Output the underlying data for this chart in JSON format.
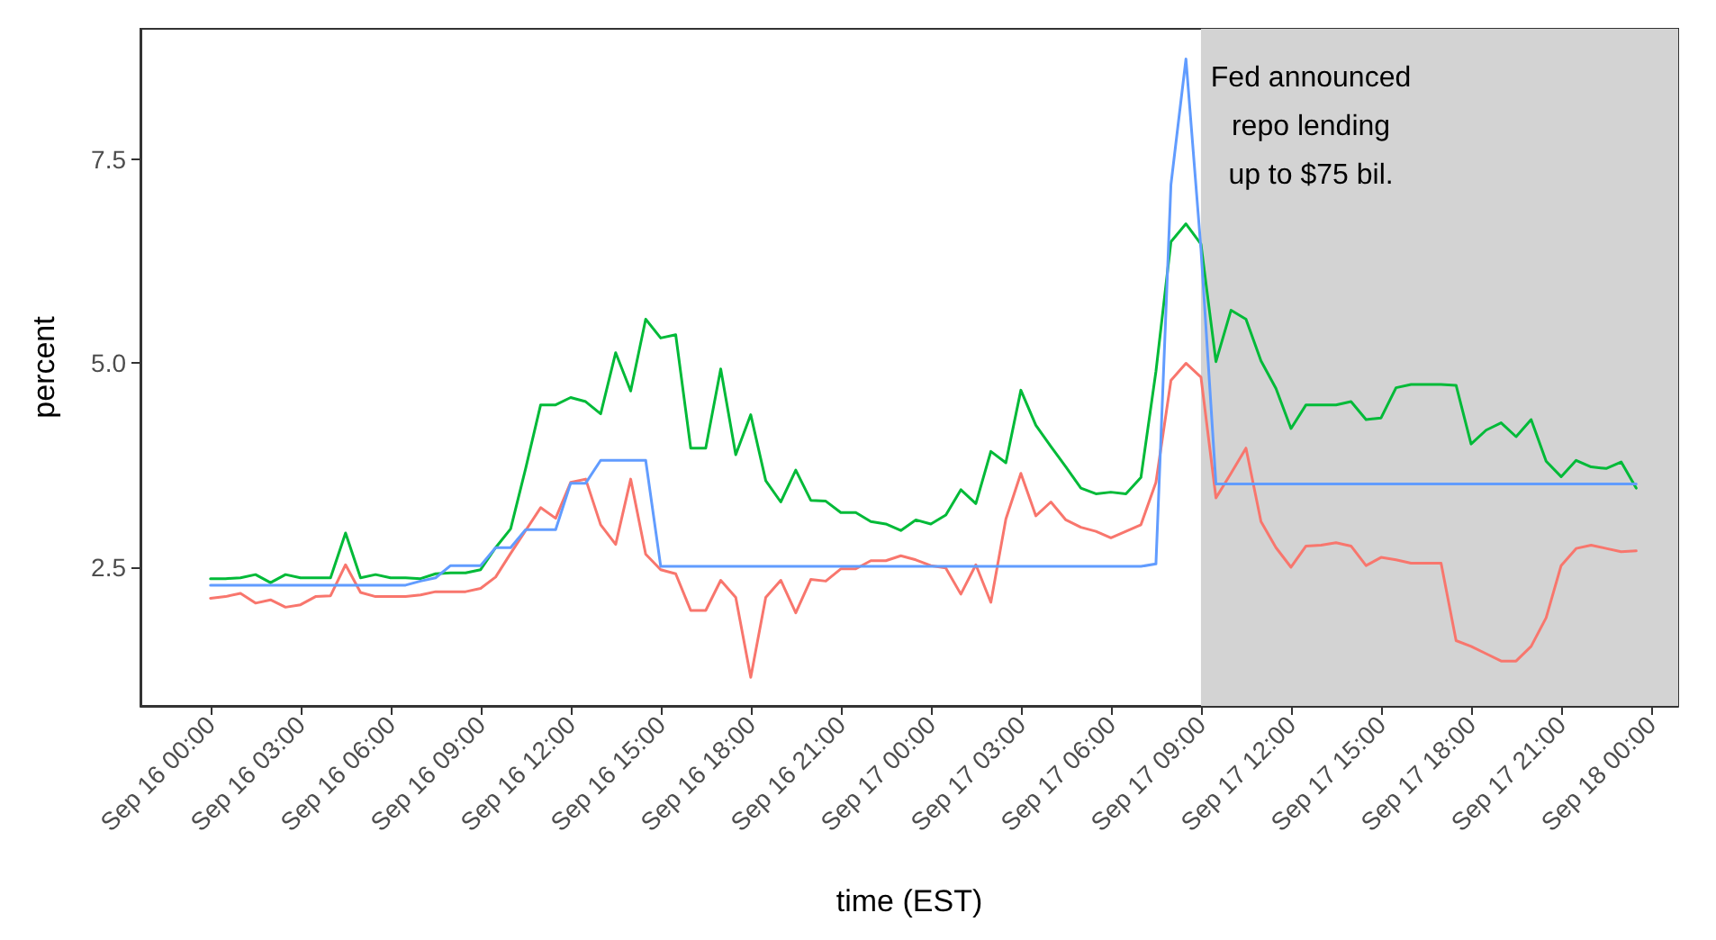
{
  "chart_data": {
    "type": "line",
    "xlabel": "time (EST)",
    "ylabel": "percent",
    "x": [
      "--09-16T00:00",
      "--09-16T00:30",
      "--09-16T01:00",
      "--09-16T01:30",
      "--09-16T02:00",
      "--09-16T02:30",
      "--09-16T03:00",
      "--09-16T03:30",
      "--09-16T04:00",
      "--09-16T04:30",
      "--09-16T05:00",
      "--09-16T05:30",
      "--09-16T06:00",
      "--09-16T06:30",
      "--09-16T07:00",
      "--09-16T07:30",
      "--09-16T08:00",
      "--09-16T08:30",
      "--09-16T09:00",
      "--09-16T09:30",
      "--09-16T10:00",
      "--09-16T10:30",
      "--09-16T11:00",
      "--09-16T11:30",
      "--09-16T12:00",
      "--09-16T12:30",
      "--09-16T13:00",
      "--09-16T13:30",
      "--09-16T14:00",
      "--09-16T14:30",
      "--09-16T15:00",
      "--09-16T15:30",
      "--09-16T16:00",
      "--09-16T16:30",
      "--09-16T17:00",
      "--09-16T17:30",
      "--09-16T18:00",
      "--09-16T18:30",
      "--09-16T19:00",
      "--09-16T19:30",
      "--09-16T20:00",
      "--09-16T20:30",
      "--09-16T21:00",
      "--09-16T21:30",
      "--09-16T22:00",
      "--09-16T22:30",
      "--09-16T23:00",
      "--09-16T23:30",
      "--09-17T00:00",
      "--09-17T00:30",
      "--09-17T01:00",
      "--09-17T01:30",
      "--09-17T02:00",
      "--09-17T02:30",
      "--09-17T03:00",
      "--09-17T03:30",
      "--09-17T04:00",
      "--09-17T04:30",
      "--09-17T05:00",
      "--09-17T05:30",
      "--09-17T06:00",
      "--09-17T06:30",
      "--09-17T07:00",
      "--09-17T07:30",
      "--09-17T08:00",
      "--09-17T08:30",
      "--09-17T09:00",
      "--09-17T09:30",
      "--09-17T10:00",
      "--09-17T10:30",
      "--09-17T11:00",
      "--09-17T11:30",
      "--09-17T12:00",
      "--09-17T12:30",
      "--09-17T13:00",
      "--09-17T13:30",
      "--09-17T14:00",
      "--09-17T14:30",
      "--09-17T15:00",
      "--09-17T15:30",
      "--09-17T16:00",
      "--09-17T16:30",
      "--09-17T17:00",
      "--09-17T17:30",
      "--09-17T18:00",
      "--09-17T18:30",
      "--09-17T19:00",
      "--09-17T19:30",
      "--09-17T20:00",
      "--09-17T20:30",
      "--09-17T21:00",
      "--09-17T21:30",
      "--09-17T22:00",
      "--09-17T22:30",
      "--09-17T23:00",
      "--09-17T23:30"
    ],
    "series": [
      {
        "color": "#f8766d",
        "values": [
          2.12,
          2.14,
          2.18,
          2.06,
          2.1,
          2.01,
          2.04,
          2.14,
          2.15,
          2.53,
          2.19,
          2.14,
          2.14,
          2.14,
          2.16,
          2.2,
          2.2,
          2.2,
          2.24,
          2.38,
          2.67,
          2.95,
          3.23,
          3.1,
          3.54,
          3.58,
          3.02,
          2.78,
          3.58,
          2.66,
          2.47,
          2.42,
          1.97,
          1.97,
          2.34,
          2.13,
          1.15,
          2.13,
          2.34,
          1.94,
          2.35,
          2.33,
          2.48,
          2.48,
          2.58,
          2.58,
          2.64,
          2.59,
          2.52,
          2.49,
          2.17,
          2.53,
          2.07,
          3.09,
          3.65,
          3.13,
          3.3,
          3.08,
          2.99,
          2.94,
          2.86,
          2.94,
          3.02,
          3.54,
          4.79,
          5.0,
          4.83,
          3.35,
          3.65,
          3.96,
          3.06,
          2.74,
          2.5,
          2.76,
          2.77,
          2.8,
          2.76,
          2.52,
          2.62,
          2.59,
          2.55,
          2.55,
          2.55,
          1.6,
          1.53,
          1.44,
          1.35,
          1.35,
          1.53,
          1.88,
          2.52,
          2.73,
          2.77,
          2.73,
          2.69,
          2.7
        ]
      },
      {
        "color": "#00ba38",
        "values": [
          2.36,
          2.36,
          2.37,
          2.41,
          2.31,
          2.41,
          2.37,
          2.37,
          2.37,
          2.92,
          2.37,
          2.41,
          2.37,
          2.37,
          2.36,
          2.42,
          2.43,
          2.43,
          2.47,
          2.74,
          2.97,
          3.71,
          4.49,
          4.49,
          4.58,
          4.53,
          4.38,
          5.13,
          4.66,
          5.54,
          5.31,
          5.35,
          3.96,
          3.96,
          4.93,
          3.88,
          4.37,
          3.56,
          3.3,
          3.69,
          3.32,
          3.31,
          3.17,
          3.17,
          3.06,
          3.03,
          2.95,
          3.08,
          3.03,
          3.14,
          3.45,
          3.28,
          3.92,
          3.78,
          4.67,
          4.24,
          3.98,
          3.73,
          3.47,
          3.4,
          3.42,
          3.4,
          3.6,
          4.9,
          6.49,
          6.71,
          6.46,
          5.02,
          5.65,
          5.54,
          5.03,
          4.69,
          4.2,
          4.49,
          4.49,
          4.49,
          4.53,
          4.31,
          4.33,
          4.7,
          4.74,
          4.74,
          4.74,
          4.73,
          4.01,
          4.18,
          4.27,
          4.1,
          4.31,
          3.8,
          3.61,
          3.81,
          3.73,
          3.71,
          3.79,
          3.47
        ]
      },
      {
        "color": "#619cff",
        "values": [
          2.28,
          2.28,
          2.28,
          2.28,
          2.28,
          2.28,
          2.28,
          2.28,
          2.28,
          2.28,
          2.28,
          2.28,
          2.28,
          2.28,
          2.33,
          2.37,
          2.52,
          2.52,
          2.52,
          2.74,
          2.74,
          2.96,
          2.96,
          2.96,
          3.53,
          3.53,
          3.81,
          3.81,
          3.81,
          3.81,
          2.51,
          2.51,
          2.51,
          2.51,
          2.51,
          2.51,
          2.51,
          2.51,
          2.51,
          2.51,
          2.51,
          2.51,
          2.51,
          2.51,
          2.51,
          2.51,
          2.51,
          2.51,
          2.51,
          2.51,
          2.51,
          2.51,
          2.51,
          2.51,
          2.51,
          2.51,
          2.51,
          2.51,
          2.51,
          2.51,
          2.51,
          2.51,
          2.51,
          2.54,
          7.19,
          8.73,
          6.4,
          3.52,
          3.52,
          3.52,
          3.52,
          3.52,
          3.52,
          3.52,
          3.52,
          3.52,
          3.52,
          3.52,
          3.52,
          3.52,
          3.52,
          3.52,
          3.52,
          3.52,
          3.52,
          3.52,
          3.52,
          3.52,
          3.52,
          3.52,
          3.52,
          3.52,
          3.52,
          3.52,
          3.52,
          3.52
        ]
      }
    ],
    "xlim": [
      "--09-15T21:40",
      "--09-18T00:54"
    ],
    "xticks": [
      {
        "value": "--09-16T00:00",
        "label": "Sep 16 00:00"
      },
      {
        "value": "--09-16T03:00",
        "label": "Sep 16 03:00"
      },
      {
        "value": "--09-16T06:00",
        "label": "Sep 16 06:00"
      },
      {
        "value": "--09-16T09:00",
        "label": "Sep 16 09:00"
      },
      {
        "value": "--09-16T12:00",
        "label": "Sep 16 12:00"
      },
      {
        "value": "--09-16T15:00",
        "label": "Sep 16 15:00"
      },
      {
        "value": "--09-16T18:00",
        "label": "Sep 16 18:00"
      },
      {
        "value": "--09-16T21:00",
        "label": "Sep 16 21:00"
      },
      {
        "value": "--09-17T00:00",
        "label": "Sep 17 00:00"
      },
      {
        "value": "--09-17T03:00",
        "label": "Sep 17 03:00"
      },
      {
        "value": "--09-17T06:00",
        "label": "Sep 17 06:00"
      },
      {
        "value": "--09-17T09:00",
        "label": "Sep 17 09:00"
      },
      {
        "value": "--09-17T12:00",
        "label": "Sep 17 12:00"
      },
      {
        "value": "--09-17T15:00",
        "label": "Sep 17 15:00"
      },
      {
        "value": "--09-17T18:00",
        "label": "Sep 17 18:00"
      },
      {
        "value": "--09-17T21:00",
        "label": "Sep 17 21:00"
      },
      {
        "value": "--09-18T00:00",
        "label": "Sep 18 00:00"
      }
    ],
    "ylim": [
      0.8,
      9.1
    ],
    "yticks": [
      {
        "value": 2.5,
        "label": "2.5"
      },
      {
        "value": 5,
        "label": "5.0"
      },
      {
        "value": 7.5,
        "label": "7.5"
      }
    ],
    "bands": [
      {
        "axis": "x",
        "from": "--09-17T09:00",
        "to": "--09-18T00:54",
        "color": "#d3d3d3"
      }
    ],
    "annotations": [
      "Fed announced\nrepo lending\nup to $75 bil."
    ],
    "grid": false,
    "marker": "none",
    "line_style": "solid"
  }
}
